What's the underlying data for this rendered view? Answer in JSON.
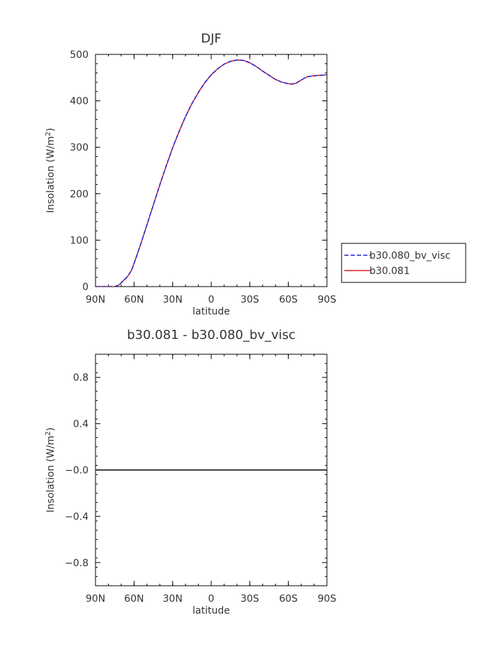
{
  "chart_data": [
    {
      "type": "line",
      "title": "DJF",
      "xlabel": "latitude",
      "ylabel": "Insolation (W/m²)",
      "ylabel_parts": {
        "main": "Insolation (W/m",
        "sup": "2",
        "close": ")"
      },
      "xlim": [
        -90,
        90
      ],
      "ylim": [
        0,
        500
      ],
      "x_ticks": [
        {
          "value": -90,
          "label": "90N"
        },
        {
          "value": -60,
          "label": "60N"
        },
        {
          "value": -30,
          "label": "30N"
        },
        {
          "value": 0,
          "label": "0"
        },
        {
          "value": 30,
          "label": "30S"
        },
        {
          "value": 60,
          "label": "60S"
        },
        {
          "value": 90,
          "label": "90S"
        }
      ],
      "y_ticks": [
        {
          "value": 0,
          "label": "0"
        },
        {
          "value": 100,
          "label": "100"
        },
        {
          "value": 200,
          "label": "200"
        },
        {
          "value": 300,
          "label": "300"
        },
        {
          "value": 400,
          "label": "400"
        },
        {
          "value": 500,
          "label": "500"
        }
      ],
      "x": [
        -90,
        -85,
        -80,
        -75,
        -72,
        -70,
        -68,
        -66,
        -64,
        -62,
        -60,
        -55,
        -50,
        -45,
        -40,
        -35,
        -30,
        -25,
        -20,
        -15,
        -10,
        -5,
        0,
        5,
        10,
        15,
        20,
        25,
        30,
        35,
        40,
        45,
        50,
        55,
        60,
        63,
        66,
        69,
        72,
        75,
        80,
        85,
        90
      ],
      "series": [
        {
          "name": "b30.080_bv_visc",
          "color": "#1f1fd6",
          "style": "dashed",
          "values": [
            0,
            0,
            0,
            0,
            3,
            8,
            14,
            19,
            26,
            35,
            50,
            90,
            133,
            176,
            219,
            260,
            299,
            334,
            366,
            394,
            418,
            439,
            456,
            469,
            479,
            485,
            488,
            487,
            482,
            474,
            464,
            455,
            446,
            440,
            437,
            436,
            438,
            443,
            448,
            452,
            454,
            455,
            456
          ]
        },
        {
          "name": "b30.081",
          "color": "#e01c1c",
          "style": "solid",
          "values": [
            0,
            0,
            0,
            0,
            3,
            8,
            14,
            19,
            26,
            35,
            50,
            90,
            133,
            176,
            219,
            260,
            299,
            334,
            366,
            394,
            418,
            439,
            456,
            469,
            479,
            485,
            488,
            487,
            482,
            474,
            464,
            455,
            446,
            440,
            437,
            436,
            438,
            443,
            448,
            452,
            454,
            455,
            456
          ]
        }
      ],
      "legend": "right"
    },
    {
      "type": "line",
      "title": "b30.081 - b30.080_bv_visc",
      "xlabel": "latitude",
      "ylabel": "Insolation (W/m²)",
      "ylabel_parts": {
        "main": "Insolation (W/m",
        "sup": "2",
        "close": ")"
      },
      "xlim": [
        -90,
        90
      ],
      "ylim": [
        -1,
        1
      ],
      "x_ticks": [
        {
          "value": -90,
          "label": "90N"
        },
        {
          "value": -60,
          "label": "60N"
        },
        {
          "value": -30,
          "label": "30N"
        },
        {
          "value": 0,
          "label": "0"
        },
        {
          "value": 30,
          "label": "30S"
        },
        {
          "value": 60,
          "label": "60S"
        },
        {
          "value": 90,
          "label": "90S"
        }
      ],
      "y_ticks": [
        {
          "value": 0.8,
          "label": "0.8"
        },
        {
          "value": 0.4,
          "label": "0.4"
        },
        {
          "value": 0.0,
          "label": "−0.0"
        },
        {
          "value": -0.4,
          "label": "−0.4"
        },
        {
          "value": -0.8,
          "label": "−0.8"
        }
      ],
      "x": [
        -90,
        90
      ],
      "series": [
        {
          "color": "#000000",
          "style": "solid",
          "values": [
            0,
            0
          ]
        }
      ]
    }
  ]
}
